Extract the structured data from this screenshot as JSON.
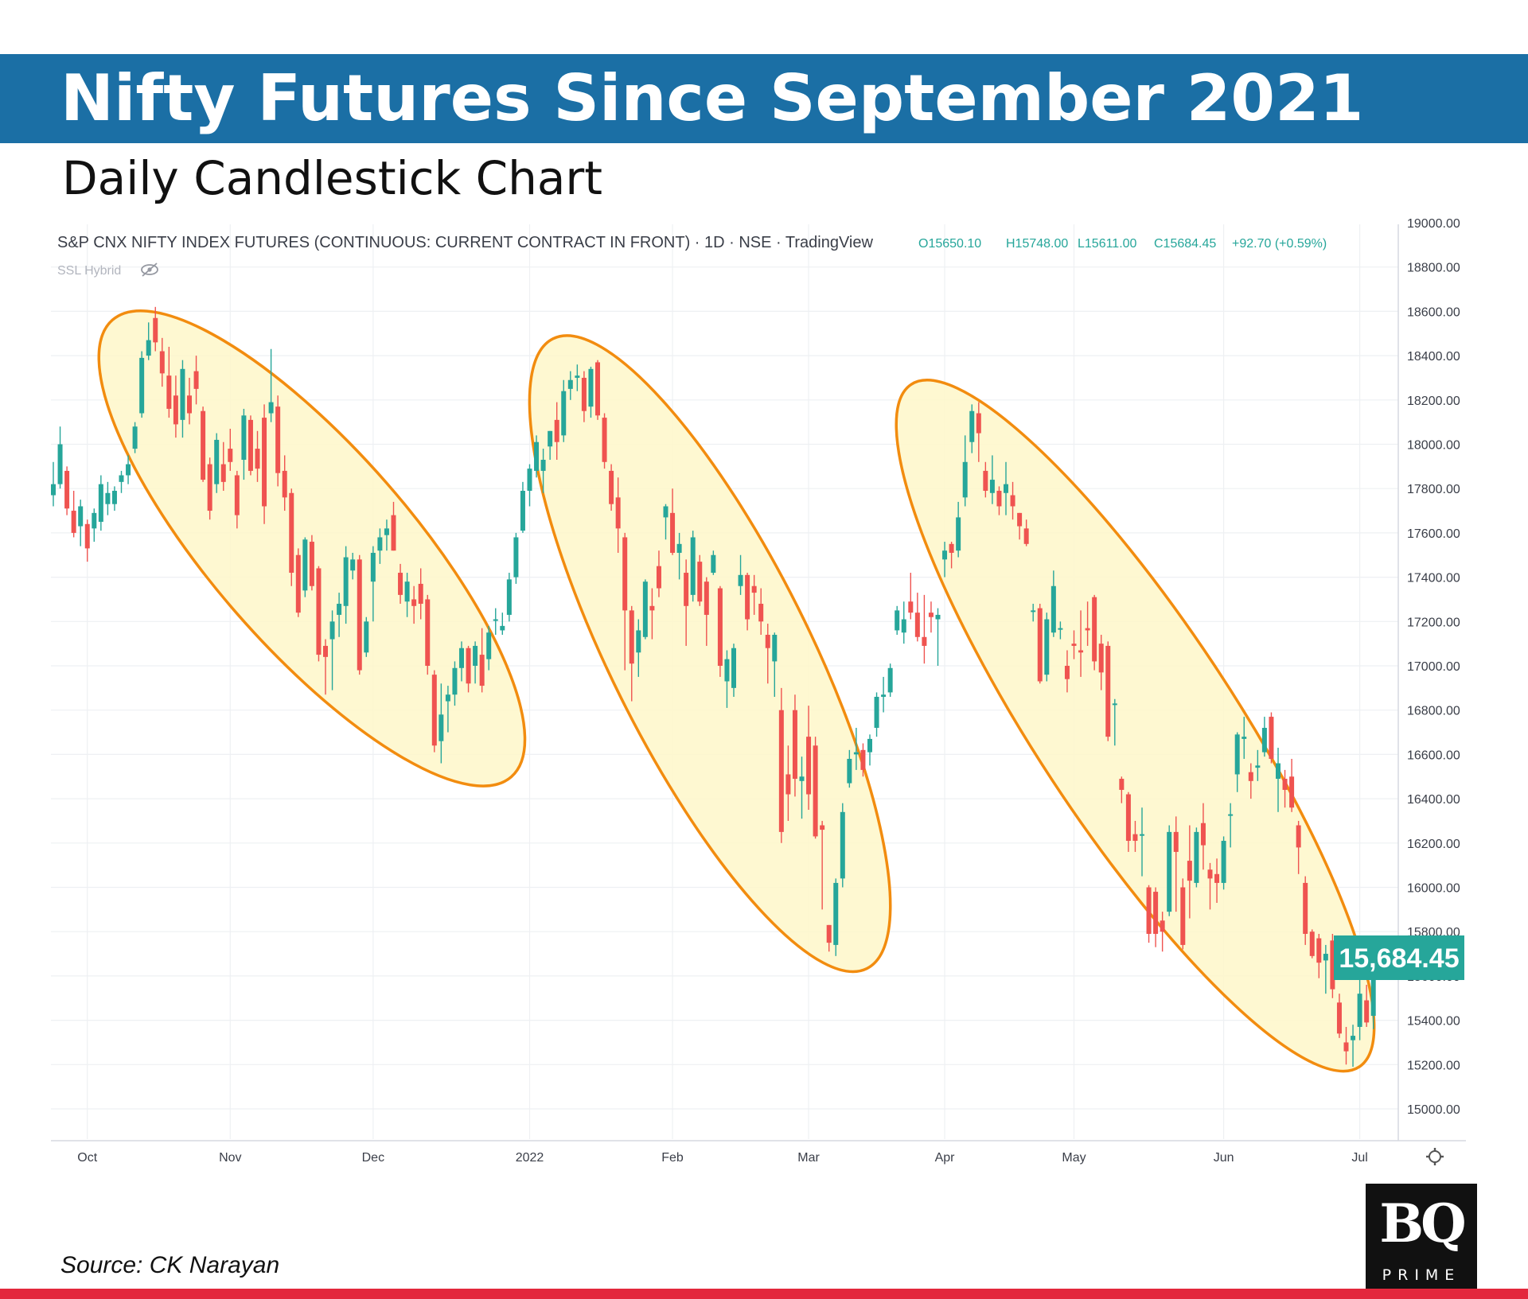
{
  "header": {
    "title": "Nifty Futures Since September 2021",
    "subtitle": "Daily Candlestick Chart"
  },
  "footer": {
    "source": "Source: CK Narayan",
    "logo_primary": "BQ",
    "logo_secondary": "PRIME"
  },
  "colors": {
    "banner": "#1b6fa5",
    "up": "#26a69a",
    "down": "#ef5350",
    "ellipse_fill": "#fef7c9",
    "ellipse_stroke": "#f28c0f",
    "bottom_bar": "#e3283d"
  },
  "chart_data": {
    "type": "candlestick",
    "instrument_label": "S&P CNX NIFTY INDEX FUTURES (CONTINUOUS: CURRENT CONTRACT IN FRONT) · 1D · NSE · TradingView",
    "ohlc_readout": {
      "open": "O15650.10",
      "high": "H15748.00",
      "low": "L15611.00",
      "close": "C15684.45",
      "change": "+92.70 (+0.59%)"
    },
    "indicator_label": "SSL Hybrid",
    "last_price_label": "15,684.45",
    "last_price": 15684.45,
    "ylim": [
      14860,
      19000
    ],
    "y_ticks": [
      15000,
      15200,
      15400,
      15600,
      15800,
      16000,
      16200,
      16400,
      16600,
      16800,
      17000,
      17200,
      17400,
      17600,
      17800,
      18000,
      18200,
      18400,
      18600,
      18800,
      19000
    ],
    "y_tick_labels": [
      "15000.00",
      "15200.00",
      "15400.00",
      "15600.00",
      "15800.00",
      "16000.00",
      "16200.00",
      "16400.00",
      "16600.00",
      "16800.00",
      "17000.00",
      "17200.00",
      "17400.00",
      "17600.00",
      "17800.00",
      "18000.00",
      "18200.00",
      "18400.00",
      "18600.00",
      "18800.00",
      "19000.00"
    ],
    "x_ticks": [
      {
        "label": "Oct",
        "index": 5
      },
      {
        "label": "Nov",
        "index": 26
      },
      {
        "label": "Dec",
        "index": 47
      },
      {
        "label": "2022",
        "index": 70
      },
      {
        "label": "Feb",
        "index": 91
      },
      {
        "label": "Mar",
        "index": 111
      },
      {
        "label": "Apr",
        "index": 131
      },
      {
        "label": "May",
        "index": 150
      },
      {
        "label": "Jun",
        "index": 172
      },
      {
        "label": "Jul",
        "index": 192
      }
    ],
    "annotations": [
      {
        "shape": "ellipse",
        "description": "downtrend Oct–Dec 2021",
        "from_index": 11,
        "to_index": 65,
        "price_top": 18480,
        "price_bottom": 16580
      },
      {
        "shape": "ellipse",
        "description": "downtrend Jan–Mar 2022",
        "from_index": 75,
        "to_index": 118,
        "price_top": 18380,
        "price_bottom": 15730
      },
      {
        "shape": "ellipse",
        "description": "downtrend Apr–Jun 2022",
        "from_index": 128,
        "to_index": 190,
        "price_top": 18180,
        "price_bottom": 15280
      }
    ],
    "candles": [
      [
        17770,
        17920,
        17720,
        17820
      ],
      [
        17820,
        18080,
        17800,
        18000
      ],
      [
        17880,
        17900,
        17680,
        17710
      ],
      [
        17700,
        17790,
        17580,
        17600
      ],
      [
        17630,
        17750,
        17540,
        17720
      ],
      [
        17640,
        17660,
        17470,
        17530
      ],
      [
        17620,
        17710,
        17560,
        17690
      ],
      [
        17650,
        17860,
        17610,
        17820
      ],
      [
        17730,
        17830,
        17680,
        17780
      ],
      [
        17730,
        17810,
        17700,
        17790
      ],
      [
        17830,
        17880,
        17780,
        17860
      ],
      [
        17860,
        17950,
        17820,
        17910
      ],
      [
        17980,
        18100,
        17960,
        18080
      ],
      [
        18140,
        18420,
        18120,
        18390
      ],
      [
        18400,
        18550,
        18380,
        18470
      ],
      [
        18570,
        18620,
        18420,
        18460
      ],
      [
        18420,
        18480,
        18260,
        18320
      ],
      [
        18310,
        18440,
        18120,
        18160
      ],
      [
        18220,
        18310,
        18030,
        18090
      ],
      [
        18110,
        18380,
        18030,
        18340
      ],
      [
        18220,
        18300,
        18090,
        18140
      ],
      [
        18330,
        18400,
        18180,
        18250
      ],
      [
        18150,
        18170,
        17830,
        17840
      ],
      [
        17910,
        17940,
        17660,
        17700
      ],
      [
        17820,
        18050,
        17780,
        18020
      ],
      [
        17910,
        18010,
        17790,
        17830
      ],
      [
        17980,
        18070,
        17880,
        17920
      ],
      [
        17860,
        17880,
        17620,
        17680
      ],
      [
        17930,
        18160,
        17840,
        18130
      ],
      [
        18110,
        18130,
        17860,
        17880
      ],
      [
        17980,
        18060,
        17830,
        17890
      ],
      [
        18120,
        18180,
        17640,
        17720
      ],
      [
        18140,
        18430,
        18100,
        18190
      ],
      [
        18170,
        18220,
        17810,
        17870
      ],
      [
        17880,
        17950,
        17700,
        17760
      ],
      [
        17780,
        17800,
        17360,
        17420
      ],
      [
        17500,
        17530,
        17220,
        17240
      ],
      [
        17340,
        17580,
        17310,
        17570
      ],
      [
        17560,
        17590,
        17340,
        17360
      ],
      [
        17440,
        17450,
        17020,
        17050
      ],
      [
        17090,
        17120,
        16870,
        17040
      ],
      [
        17120,
        17250,
        16890,
        17200
      ],
      [
        17230,
        17330,
        17130,
        17280
      ],
      [
        17270,
        17540,
        17190,
        17490
      ],
      [
        17430,
        17510,
        17390,
        17480
      ],
      [
        17480,
        17500,
        16960,
        16980
      ],
      [
        17060,
        17220,
        17040,
        17200
      ],
      [
        17380,
        17540,
        17200,
        17510
      ],
      [
        17520,
        17620,
        17460,
        17580
      ],
      [
        17590,
        17660,
        17520,
        17620
      ],
      [
        17680,
        17740,
        17520,
        17520
      ],
      [
        17420,
        17460,
        17280,
        17320
      ],
      [
        17290,
        17420,
        17220,
        17380
      ],
      [
        17300,
        17360,
        17190,
        17270
      ],
      [
        17370,
        17440,
        17210,
        17280
      ],
      [
        17300,
        17320,
        16960,
        17000
      ],
      [
        16960,
        16980,
        16610,
        16640
      ],
      [
        16660,
        16920,
        16560,
        16780
      ],
      [
        16840,
        16910,
        16700,
        16870
      ],
      [
        16870,
        17020,
        16820,
        16990
      ],
      [
        16990,
        17110,
        16930,
        17080
      ],
      [
        17080,
        17090,
        16880,
        16920
      ],
      [
        17000,
        17110,
        16920,
        17090
      ],
      [
        17050,
        17170,
        16880,
        16910
      ],
      [
        17030,
        17180,
        16980,
        17150
      ],
      [
        17210,
        17260,
        17140,
        17210
      ],
      [
        17160,
        17240,
        17140,
        17180
      ],
      [
        17230,
        17420,
        17200,
        17390
      ],
      [
        17400,
        17600,
        17370,
        17580
      ],
      [
        17610,
        17830,
        17600,
        17790
      ],
      [
        17790,
        17910,
        17720,
        17890
      ],
      [
        17880,
        18040,
        17850,
        18010
      ],
      [
        17880,
        17980,
        17780,
        17930
      ],
      [
        17990,
        18060,
        17930,
        18060
      ],
      [
        18110,
        18190,
        17930,
        18010
      ],
      [
        18040,
        18290,
        18010,
        18240
      ],
      [
        18250,
        18330,
        18200,
        18290
      ],
      [
        18300,
        18360,
        18240,
        18310
      ],
      [
        18300,
        18330,
        18100,
        18150
      ],
      [
        18170,
        18350,
        18120,
        18340
      ],
      [
        18370,
        18380,
        18110,
        18130
      ],
      [
        18120,
        18140,
        17890,
        17920
      ],
      [
        17880,
        17910,
        17700,
        17730
      ],
      [
        17760,
        17850,
        17510,
        17620
      ],
      [
        17580,
        17600,
        16980,
        17250
      ],
      [
        17250,
        17270,
        16840,
        17010
      ],
      [
        17060,
        17210,
        16950,
        17160
      ],
      [
        17130,
        17390,
        17120,
        17380
      ],
      [
        17270,
        17350,
        17120,
        17250
      ],
      [
        17450,
        17520,
        17310,
        17350
      ],
      [
        17670,
        17730,
        17570,
        17720
      ],
      [
        17690,
        17800,
        17500,
        17510
      ],
      [
        17510,
        17600,
        17390,
        17550
      ],
      [
        17420,
        17480,
        17090,
        17270
      ],
      [
        17320,
        17610,
        17290,
        17580
      ],
      [
        17470,
        17500,
        17270,
        17290
      ],
      [
        17380,
        17400,
        17090,
        17230
      ],
      [
        17420,
        17520,
        17410,
        17500
      ],
      [
        17350,
        17360,
        16950,
        17000
      ],
      [
        16930,
        17070,
        16810,
        17030
      ],
      [
        16900,
        17100,
        16860,
        17080
      ],
      [
        17360,
        17500,
        17320,
        17410
      ],
      [
        17410,
        17420,
        17160,
        17210
      ],
      [
        17360,
        17410,
        17230,
        17330
      ],
      [
        17280,
        17350,
        17140,
        17200
      ],
      [
        17140,
        17190,
        16920,
        17080
      ],
      [
        17020,
        17150,
        16860,
        17140
      ],
      [
        16800,
        16900,
        16200,
        16250
      ],
      [
        16510,
        16640,
        16300,
        16420
      ],
      [
        16800,
        16870,
        16410,
        16490
      ],
      [
        16480,
        16590,
        16310,
        16500
      ],
      [
        16680,
        16820,
        16350,
        16420
      ],
      [
        16640,
        16680,
        16220,
        16230
      ],
      [
        16280,
        16300,
        15900,
        16260
      ],
      [
        15830,
        15830,
        15710,
        15750
      ],
      [
        15740,
        16040,
        15690,
        16020
      ],
      [
        16040,
        16380,
        16000,
        16340
      ],
      [
        16470,
        16620,
        16450,
        16580
      ],
      [
        16600,
        16720,
        16530,
        16610
      ],
      [
        16620,
        16650,
        16500,
        16530
      ],
      [
        16610,
        16690,
        16550,
        16670
      ],
      [
        16720,
        16880,
        16680,
        16860
      ],
      [
        16860,
        16950,
        16790,
        16870
      ],
      [
        16880,
        17010,
        16860,
        16990
      ],
      [
        17160,
        17270,
        17140,
        17250
      ],
      [
        17150,
        17290,
        17100,
        17210
      ],
      [
        17290,
        17420,
        17210,
        17240
      ],
      [
        17240,
        17330,
        17110,
        17130
      ],
      [
        17130,
        17320,
        17010,
        17090
      ],
      [
        17240,
        17290,
        17150,
        17220
      ],
      [
        17210,
        17260,
        17000,
        17230
      ],
      [
        17480,
        17560,
        17400,
        17520
      ],
      [
        17550,
        17560,
        17440,
        17510
      ],
      [
        17520,
        17740,
        17490,
        17670
      ],
      [
        17760,
        18040,
        17720,
        17920
      ],
      [
        18010,
        18180,
        17960,
        18150
      ],
      [
        18140,
        18190,
        17920,
        18050
      ],
      [
        17880,
        17920,
        17760,
        17790
      ],
      [
        17780,
        17950,
        17730,
        17840
      ],
      [
        17790,
        17810,
        17680,
        17720
      ],
      [
        17780,
        17920,
        17680,
        17820
      ],
      [
        17770,
        17830,
        17660,
        17720
      ],
      [
        17690,
        17690,
        17570,
        17630
      ],
      [
        17620,
        17660,
        17540,
        17550
      ],
      [
        17250,
        17280,
        17200,
        17250
      ],
      [
        17260,
        17280,
        16920,
        16930
      ],
      [
        16960,
        17240,
        16930,
        17210
      ],
      [
        17150,
        17430,
        17130,
        17360
      ],
      [
        17170,
        17200,
        17120,
        17170
      ],
      [
        17000,
        17070,
        16880,
        16940
      ],
      [
        17100,
        17160,
        17030,
        17090
      ],
      [
        17070,
        17250,
        16950,
        17060
      ],
      [
        17170,
        17290,
        17090,
        17160
      ],
      [
        17310,
        17320,
        16980,
        17020
      ],
      [
        17100,
        17140,
        16890,
        16970
      ],
      [
        17090,
        17110,
        16660,
        16680
      ],
      [
        16830,
        16850,
        16640,
        16830
      ],
      [
        16490,
        16500,
        16380,
        16440
      ],
      [
        16420,
        16430,
        16160,
        16210
      ],
      [
        16240,
        16300,
        16160,
        16210
      ],
      [
        16240,
        16360,
        16050,
        16240
      ],
      [
        16000,
        16010,
        15750,
        15790
      ],
      [
        15980,
        16000,
        15730,
        15790
      ],
      [
        15850,
        15890,
        15710,
        15800
      ],
      [
        15890,
        16280,
        15870,
        16250
      ],
      [
        16250,
        16320,
        15890,
        16160
      ],
      [
        16000,
        16040,
        15720,
        15740
      ],
      [
        16120,
        16280,
        15860,
        16030
      ],
      [
        16020,
        16270,
        16000,
        16250
      ],
      [
        16290,
        16380,
        16080,
        16190
      ],
      [
        16080,
        16110,
        15900,
        16040
      ],
      [
        16060,
        16130,
        15930,
        16020
      ],
      [
        16020,
        16230,
        15990,
        16210
      ],
      [
        16330,
        16380,
        16180,
        16330
      ],
      [
        16510,
        16700,
        16430,
        16690
      ],
      [
        16670,
        16770,
        16580,
        16680
      ],
      [
        16520,
        16560,
        16400,
        16480
      ],
      [
        16540,
        16620,
        16480,
        16550
      ],
      [
        16610,
        16770,
        16590,
        16720
      ],
      [
        16770,
        16790,
        16560,
        16580
      ],
      [
        16490,
        16630,
        16340,
        16560
      ],
      [
        16490,
        16530,
        16360,
        16440
      ],
      [
        16500,
        16580,
        16340,
        16360
      ],
      [
        16280,
        16300,
        16060,
        16180
      ],
      [
        16020,
        16050,
        15740,
        15790
      ],
      [
        15800,
        15810,
        15680,
        15690
      ],
      [
        15770,
        15790,
        15590,
        15660
      ],
      [
        15670,
        15740,
        15520,
        15700
      ],
      [
        15760,
        15790,
        15500,
        15540
      ],
      [
        15480,
        15520,
        15320,
        15340
      ],
      [
        15300,
        15370,
        15200,
        15260
      ],
      [
        15310,
        15380,
        15190,
        15330
      ],
      [
        15370,
        15600,
        15310,
        15520
      ],
      [
        15490,
        15560,
        15370,
        15390
      ],
      [
        15420,
        15600,
        15360,
        15590
      ],
      [
        15650,
        15750,
        15610,
        15680
      ]
    ]
  }
}
